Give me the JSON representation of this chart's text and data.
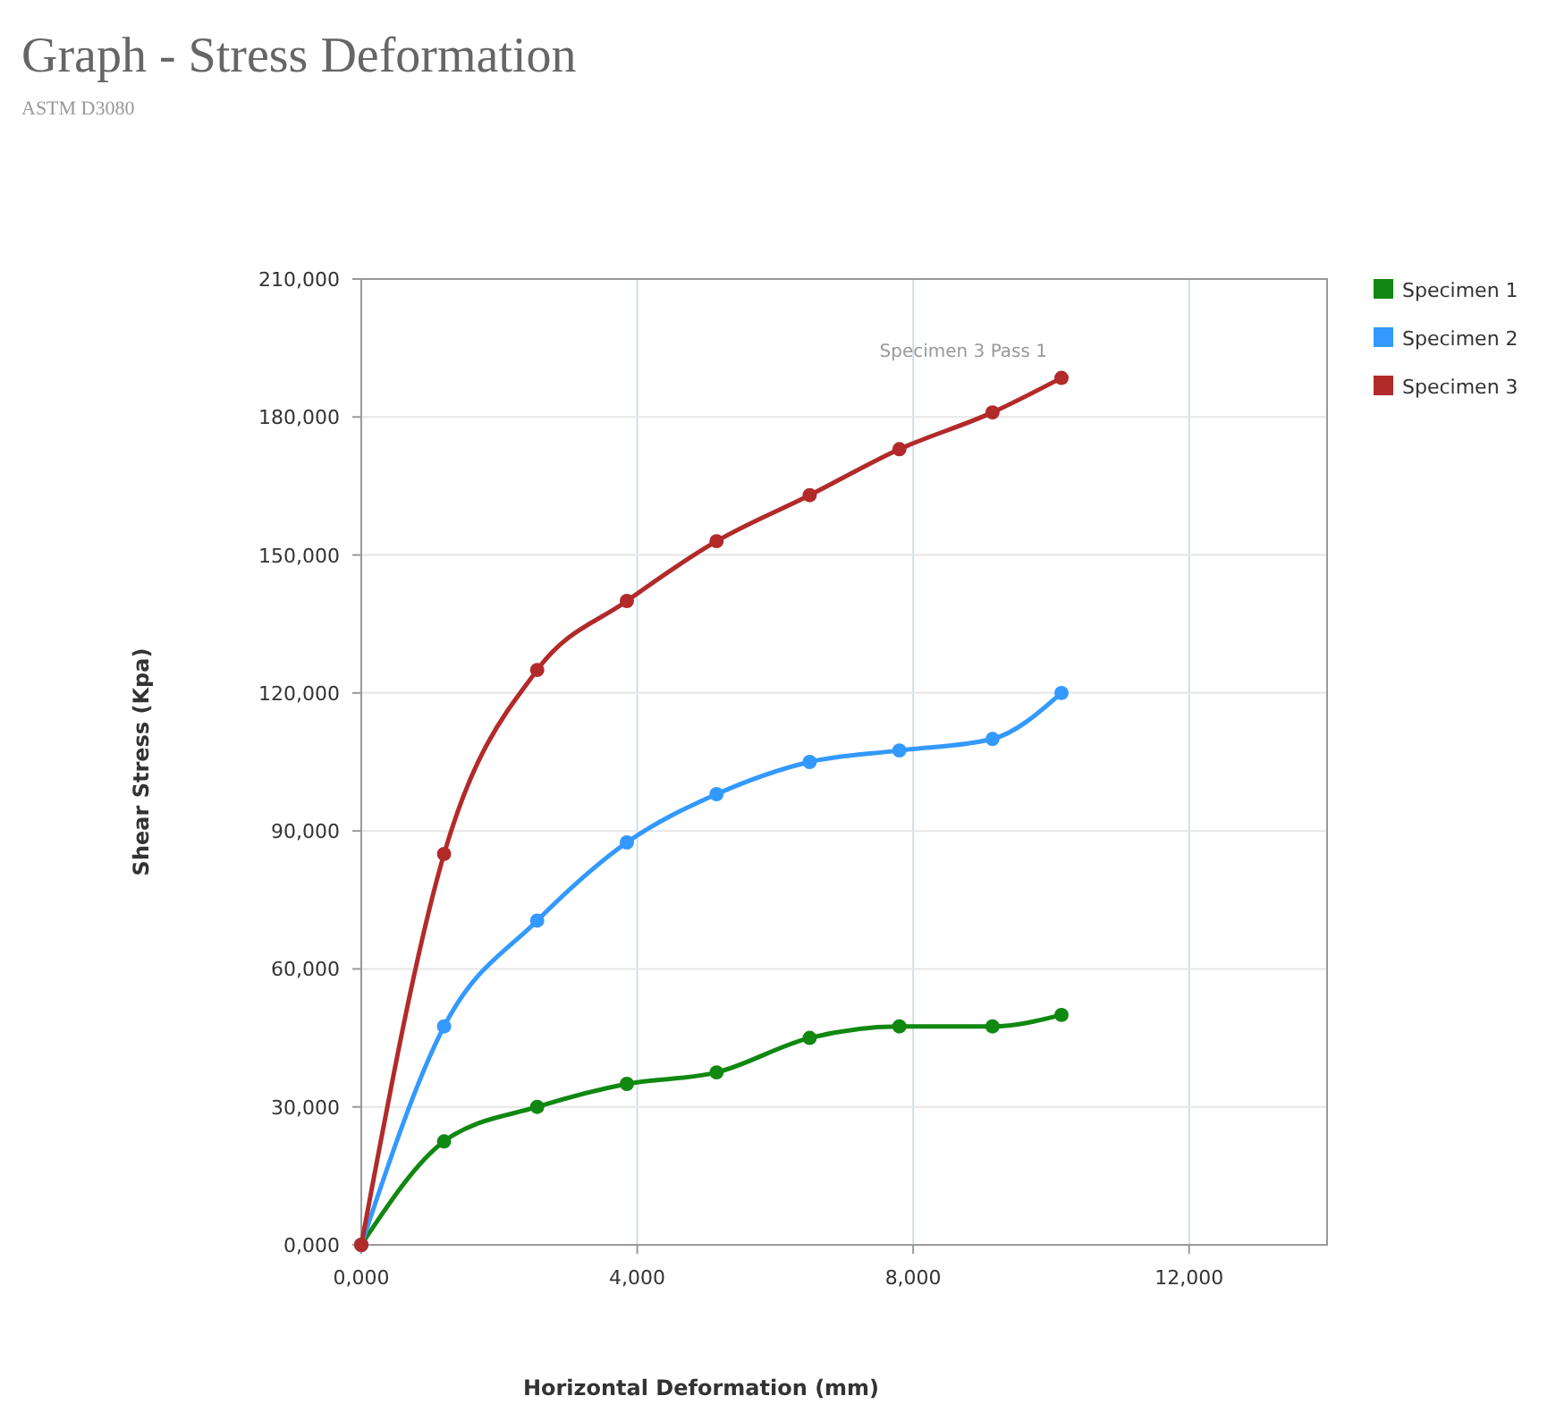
{
  "chart_data": {
    "type": "line",
    "title": "Graph - Stress Deformation",
    "subtitle": "ASTM D3080",
    "xlabel": "Horizontal Deformation (mm)",
    "ylabel": "Shear Stress (Kpa)",
    "x": [
      0,
      1.2,
      2.55,
      3.85,
      5.15,
      6.5,
      7.8,
      9.15,
      10.15
    ],
    "series": [
      {
        "name": "Specimen 1",
        "color": "#118811",
        "values": [
          0,
          22.5,
          30,
          35,
          37.5,
          45,
          47.5,
          47.5,
          50
        ]
      },
      {
        "name": "Specimen 2",
        "color": "#3399ff",
        "values": [
          0,
          47.5,
          70.5,
          87.5,
          98,
          105,
          107.5,
          110,
          120
        ]
      },
      {
        "name": "Specimen 3",
        "color": "#b22a2a",
        "values": [
          0,
          85,
          125,
          140,
          153,
          163,
          173,
          181,
          188.5
        ]
      }
    ],
    "xlim": [
      0,
      14
    ],
    "xticks": [
      {
        "value": 0,
        "label": "0,000"
      },
      {
        "value": 4,
        "label": "4,000"
      },
      {
        "value": 8,
        "label": "8,000"
      },
      {
        "value": 12,
        "label": "12,000"
      }
    ],
    "ylim": [
      0,
      210
    ],
    "yticks": [
      {
        "value": 0,
        "label": "0,000"
      },
      {
        "value": 30,
        "label": "30,000"
      },
      {
        "value": 60,
        "label": "60,000"
      },
      {
        "value": 90,
        "label": "90,000"
      },
      {
        "value": 120,
        "label": "120,000"
      },
      {
        "value": 150,
        "label": "150,000"
      },
      {
        "value": 180,
        "label": "180,000"
      },
      {
        "value": 210,
        "label": "210,000"
      }
    ],
    "grid": true,
    "legend": "top right",
    "marker": "circle",
    "line_style": "solid",
    "annotations": [
      {
        "text": "Specimen 3 Pass 1",
        "x": 10.15,
        "y": 188.5
      }
    ]
  }
}
